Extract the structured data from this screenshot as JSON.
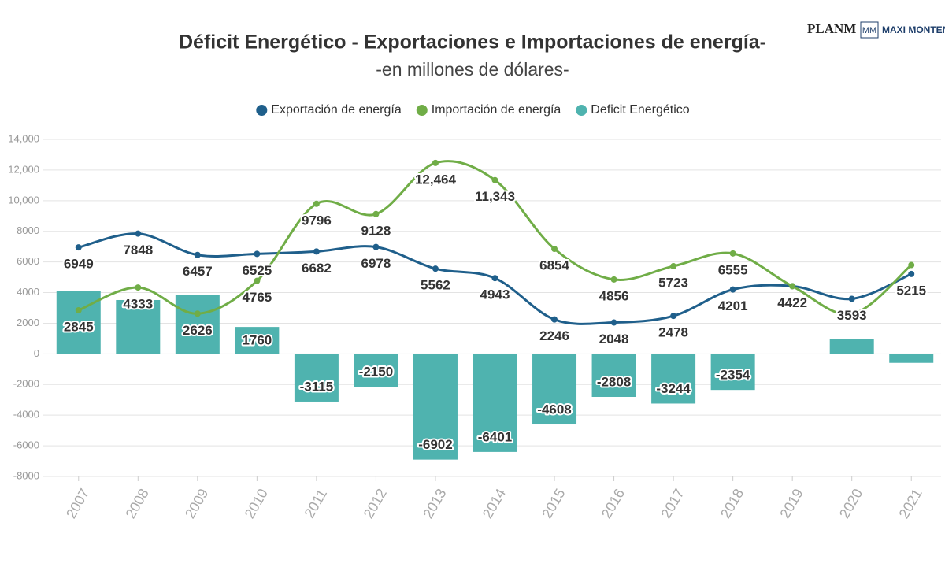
{
  "chart_data": {
    "type": "combo",
    "title": "Déficit Energético - Exportaciones e Importaciones de energía-",
    "subtitle": "-en millones de dólares-",
    "logo": {
      "brand": "PLANM",
      "mark": "MM",
      "name": "MAXI MONTENE"
    },
    "categories": [
      "2007",
      "2008",
      "2009",
      "2010",
      "2011",
      "2012",
      "2013",
      "2014",
      "2015",
      "2016",
      "2017",
      "2018",
      "2019",
      "2020",
      "2021"
    ],
    "series": [
      {
        "name": "Exportación de energía",
        "type": "line",
        "color": "#1f5f8b",
        "values": [
          6949,
          7848,
          6457,
          6525,
          6682,
          6978,
          5562,
          4943,
          2246,
          2048,
          2478,
          4201,
          4422,
          3593,
          5215
        ],
        "value_labels": [
          "6949",
          "7848",
          "6457",
          "6525",
          "6682",
          "6978",
          "5562",
          "4943",
          "2246",
          "2048",
          "2478",
          "4201",
          "4422",
          "3593",
          "5215"
        ]
      },
      {
        "name": "Importación de energía",
        "type": "line",
        "color": "#70ad47",
        "values": [
          2845,
          4333,
          2626,
          4765,
          9796,
          9128,
          12464,
          11343,
          6854,
          4856,
          5723,
          6555,
          4420,
          2600,
          5800
        ],
        "value_labels": [
          "2845",
          "4333",
          "2626",
          "4765",
          "9796",
          "9128",
          "12,464",
          "11,343",
          "6854",
          "4856",
          "5723",
          "6555",
          null,
          null,
          null
        ]
      },
      {
        "name": "Deficit Energético",
        "type": "bar",
        "color": "#4fb3af",
        "values": [
          4104,
          3515,
          3831,
          1760,
          -3115,
          -2150,
          -6902,
          -6401,
          -4608,
          -2808,
          -3244,
          -2354,
          0,
          993,
          -585
        ],
        "value_labels": [
          null,
          null,
          null,
          "1760",
          "-3115",
          "-2150",
          "-6902",
          "-6401",
          "-4608",
          "-2808",
          "-3244",
          "-2354",
          null,
          null,
          null
        ]
      }
    ],
    "ylim": [
      -8000,
      14000
    ],
    "yticks": [
      -8000,
      -6000,
      -4000,
      -2000,
      0,
      2000,
      4000,
      6000,
      8000,
      {
        "value": 10000,
        "label": "10,000"
      },
      {
        "value": 12000,
        "label": "12,000"
      },
      {
        "value": 14000,
        "label": "14,000"
      }
    ],
    "grid": true,
    "legend": "top"
  }
}
